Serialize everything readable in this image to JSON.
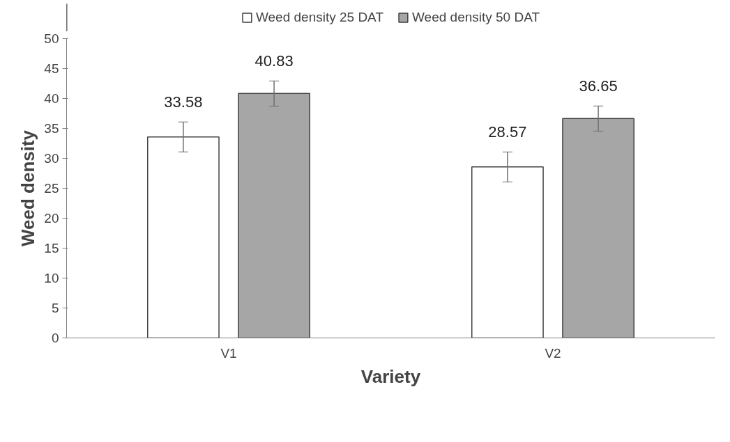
{
  "chart_data": {
    "type": "bar",
    "xlabel": "Variety",
    "ylabel": "Weed density",
    "categories": [
      "V1",
      "V2"
    ],
    "series": [
      {
        "name": "Weed density 25 DAT",
        "color": "#ffffff",
        "values": [
          33.58,
          28.57
        ],
        "errors": [
          2.5,
          2.5
        ]
      },
      {
        "name": "Weed density 50 DAT",
        "color": "#a6a6a6",
        "values": [
          40.83,
          36.65
        ],
        "errors": [
          2.1,
          2.1
        ]
      }
    ],
    "ylim": [
      0,
      50
    ],
    "yticks": [
      0,
      5,
      10,
      15,
      20,
      25,
      30,
      35,
      40,
      45,
      50
    ],
    "data_labels": true,
    "grid": false,
    "legend": "top"
  }
}
